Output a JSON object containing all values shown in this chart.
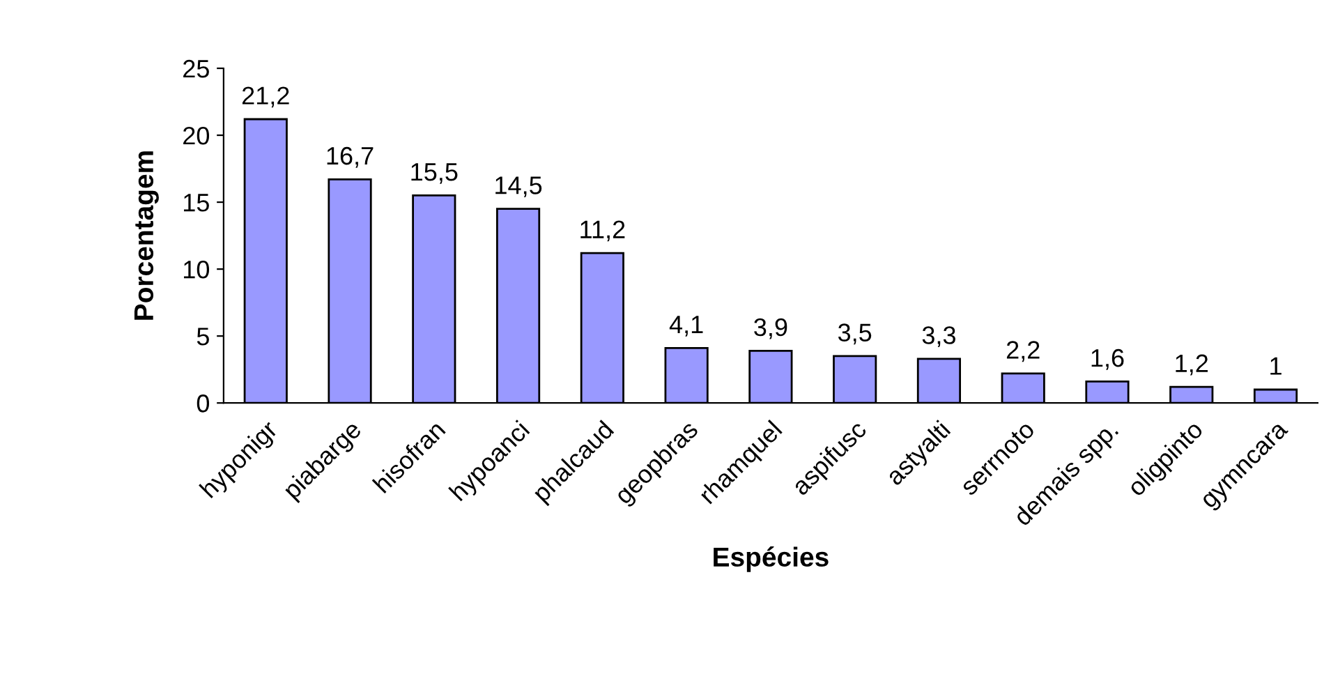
{
  "chart_data": {
    "type": "bar",
    "xlabel": "Espécies",
    "ylabel": "Porcentagem",
    "categories": [
      "hyponigr",
      "piabarge",
      "hisofran",
      "hypoanci",
      "phalcaud",
      "geopbras",
      "rhamquel",
      "aspifusc",
      "astyalti",
      "serrnoto",
      "demais spp.",
      "oligpinto",
      "gymncara"
    ],
    "values": [
      21.2,
      16.7,
      15.5,
      14.5,
      11.2,
      4.1,
      3.9,
      3.5,
      3.3,
      2.2,
      1.6,
      1.2,
      1
    ],
    "value_labels": [
      "21,2",
      "16,7",
      "15,5",
      "14,5",
      "11,2",
      "4,1",
      "3,9",
      "3,5",
      "3,3",
      "2,2",
      "1,6",
      "1,2",
      "1"
    ],
    "color": "#9999ff",
    "ylim": [
      0,
      25
    ],
    "yticks": [
      0,
      5,
      10,
      15,
      20,
      25
    ],
    "grid": false,
    "legend": false
  }
}
